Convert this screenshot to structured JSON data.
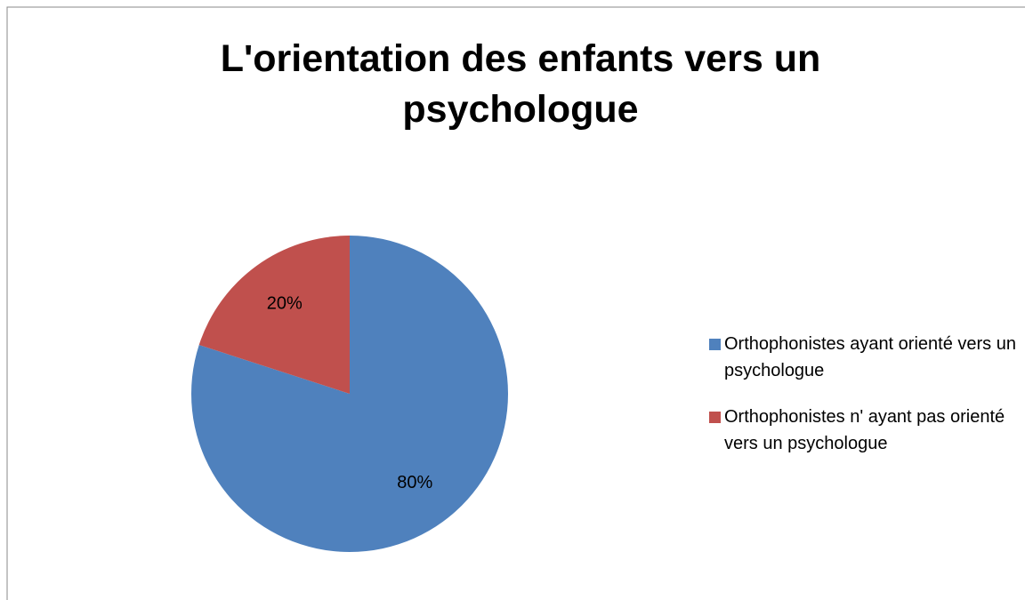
{
  "chart_data": {
    "type": "pie",
    "title": "L'orientation des enfants vers un psychologue",
    "categories": [
      "Orthophonistes ayant orienté vers un psychologue",
      "Orthophonistes n' ayant pas orienté vers un psychologue"
    ],
    "values": [
      80,
      20
    ],
    "value_labels": [
      "80%",
      "20%"
    ],
    "colors": [
      "#4f81bd",
      "#c0504d"
    ],
    "legend": "right"
  }
}
